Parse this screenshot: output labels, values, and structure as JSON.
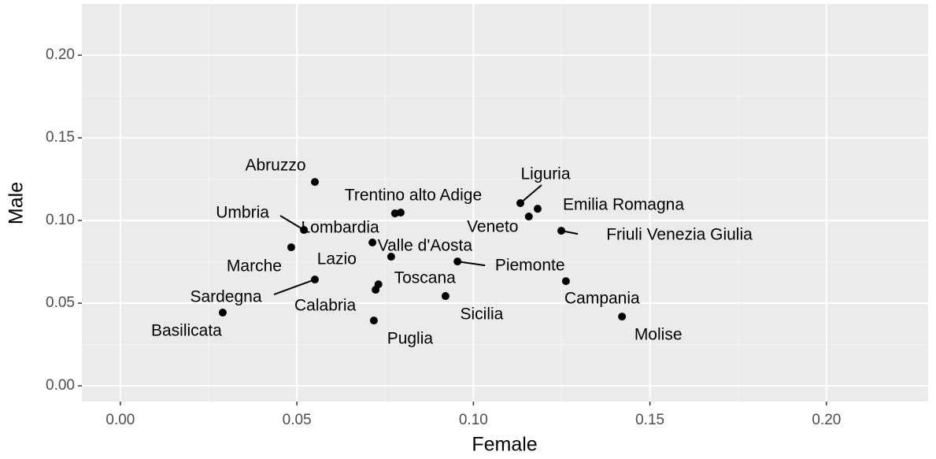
{
  "chart_data": {
    "type": "scatter",
    "x_label": "Female",
    "y_label": "Male",
    "xlim": [
      -0.0109,
      0.2288
    ],
    "ylim": [
      -0.0095,
      0.231
    ],
    "xticks": [
      {
        "value": 0,
        "label": "0.00"
      },
      {
        "value": 0.05,
        "label": "0.05"
      },
      {
        "value": 0.1,
        "label": "0.10"
      },
      {
        "value": 0.15,
        "label": "0.15"
      },
      {
        "value": 0.2,
        "label": "0.20"
      }
    ],
    "yticks": [
      {
        "value": 0,
        "label": "0.00"
      },
      {
        "value": 0.05,
        "label": "0.05"
      },
      {
        "value": 0.1,
        "label": "0.10"
      },
      {
        "value": 0.15,
        "label": "0.15"
      },
      {
        "value": 0.2,
        "label": "0.20"
      }
    ],
    "grid": true,
    "color": "#000000",
    "labels": [
      "Abruzzo",
      "Trentino alto Adige",
      "Liguria",
      "Emilia Romagna",
      "Umbria",
      "Lombardia",
      "Veneto",
      "Friuli Venezia Giulia",
      "Valle d'Aosta",
      "Marche",
      "Lazio",
      "Piemonte",
      "Toscana",
      "Sardegna",
      "Campania",
      "Calabria",
      "Sicilia",
      "Basilicata",
      "Puglia",
      "Molise"
    ],
    "x": [
      0.0551,
      0.0794,
      0.1133,
      0.1182,
      0.052,
      0.0714,
      0.1157,
      0.1249,
      0.0767,
      0.0484,
      0.0778,
      0.0955,
      0.0731,
      0.0551,
      0.1262,
      0.0723,
      0.0921,
      0.029,
      0.0718,
      0.1421
    ],
    "values": [
      0.1233,
      0.1048,
      0.1105,
      0.1071,
      0.0943,
      0.0867,
      0.1024,
      0.0938,
      0.0781,
      0.0838,
      0.1043,
      0.0752,
      0.0614,
      0.0643,
      0.0633,
      0.0581,
      0.0543,
      0.0443,
      0.0395,
      0.0419
    ]
  }
}
